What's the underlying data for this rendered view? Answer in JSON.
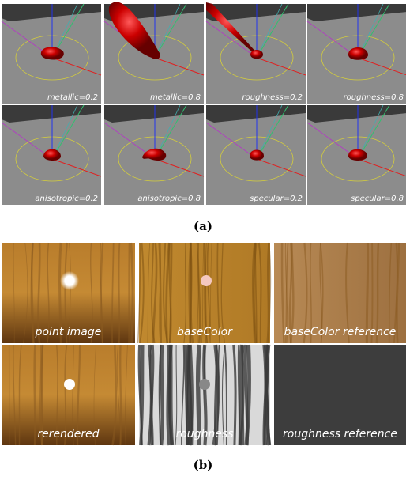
{
  "figure": {
    "panels": [
      {
        "label": "(a)",
        "tiles": [
          {
            "caption": "metallic=0.2"
          },
          {
            "caption": "metallic=0.8"
          },
          {
            "caption": "roughness=0.2"
          },
          {
            "caption": "roughness=0.8"
          },
          {
            "caption": "anisotropic=0.2"
          },
          {
            "caption": "anisotropic=0.8"
          },
          {
            "caption": "specular=0.2"
          },
          {
            "caption": "specular=0.8"
          }
        ]
      },
      {
        "label": "(b)",
        "tiles": [
          {
            "caption": "point image"
          },
          {
            "caption": "baseColor"
          },
          {
            "caption": "baseColor reference"
          },
          {
            "caption": "rerendered"
          },
          {
            "caption": "roughness"
          },
          {
            "caption": "roughness reference"
          }
        ]
      }
    ]
  }
}
